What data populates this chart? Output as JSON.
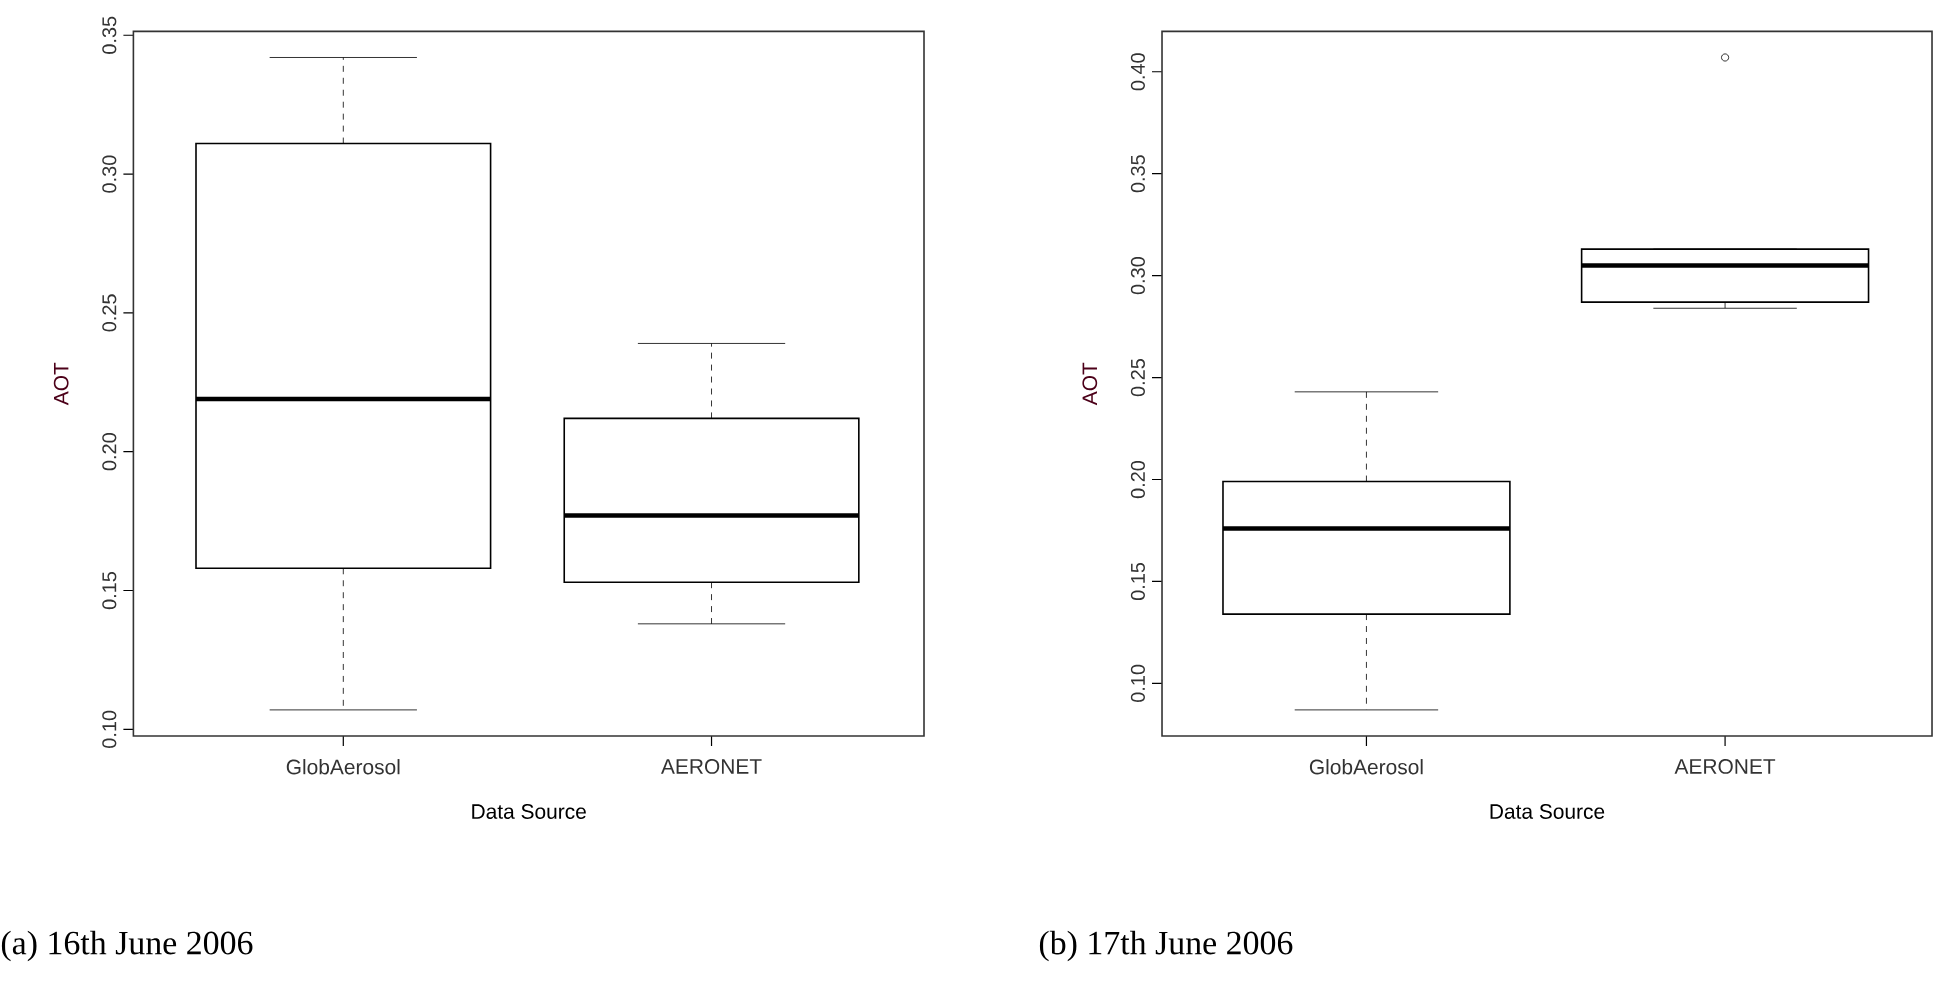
{
  "chart_data": [
    {
      "type": "box",
      "categories": [
        "GlobAerosol",
        "AERONET"
      ],
      "color": "#000000",
      "xlabel": "Data Source",
      "ylabel": "AOT",
      "ylim": [
        0.0976,
        0.3514
      ],
      "yticks": [
        {
          "value": 0.1,
          "label": "0.10"
        },
        {
          "value": 0.15,
          "label": "0.15"
        },
        {
          "value": 0.2,
          "label": "0.20"
        },
        {
          "value": 0.25,
          "label": "0.25"
        },
        {
          "value": 0.3,
          "label": "0.30"
        },
        {
          "value": 0.35,
          "label": "0.35"
        }
      ],
      "boxes": [
        {
          "low": 0.107,
          "q1": 0.158,
          "median": 0.219,
          "q3": 0.311,
          "high": 0.342
        },
        {
          "low": 0.138,
          "q1": 0.153,
          "median": 0.177,
          "q3": 0.212,
          "high": 0.239
        }
      ],
      "annotations": [
        "(a) 16th June 2006"
      ]
    },
    {
      "type": "box",
      "categories": [
        "GlobAerosol",
        "AERONET"
      ],
      "color": "#000000",
      "xlabel": "Data Source",
      "ylabel": "AOT",
      "ylim": [
        0.0742,
        0.4198
      ],
      "yticks": [
        {
          "value": 0.1,
          "label": "0.10"
        },
        {
          "value": 0.15,
          "label": "0.15"
        },
        {
          "value": 0.2,
          "label": "0.20"
        },
        {
          "value": 0.25,
          "label": "0.25"
        },
        {
          "value": 0.3,
          "label": "0.30"
        },
        {
          "value": 0.35,
          "label": "0.35"
        },
        {
          "value": 0.4,
          "label": "0.40"
        }
      ],
      "boxes": [
        {
          "low": 0.087,
          "q1": 0.134,
          "median": 0.176,
          "q3": 0.199,
          "high": 0.243
        },
        {
          "low": 0.284,
          "q1": 0.287,
          "median": 0.305,
          "q3": 0.313,
          "high": 0.313,
          "outliers": [
            0.407
          ]
        }
      ],
      "annotations": [
        "(b) 17th June 2006"
      ]
    }
  ]
}
